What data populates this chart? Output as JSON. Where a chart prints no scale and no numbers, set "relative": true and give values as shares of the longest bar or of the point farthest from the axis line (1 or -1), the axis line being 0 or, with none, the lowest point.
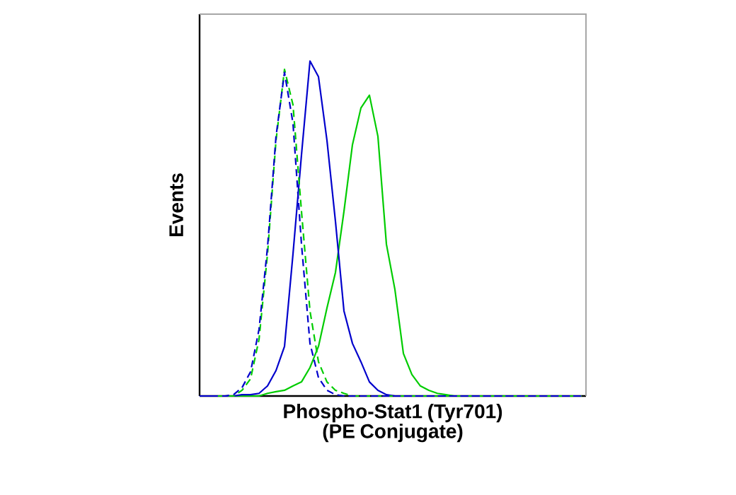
{
  "chart_data": {
    "type": "line",
    "relative": true,
    "xlabel": "Phospho-Stat1 (Tyr701) (PE Conjugate)",
    "ylabel": "Events",
    "marker": "none",
    "categories": [
      null,
      null,
      null,
      null,
      null,
      null,
      null,
      null,
      null,
      null,
      null,
      null,
      null,
      null,
      null,
      null,
      null,
      null,
      null,
      null,
      null,
      null,
      null,
      null,
      null,
      null,
      null,
      null,
      null,
      null,
      null,
      null,
      null,
      null,
      null,
      null,
      null,
      null,
      null,
      null,
      null,
      null,
      null,
      null,
      null,
      null
    ],
    "series": [
      {
        "color": "#00cc00",
        "line_style": "solid",
        "values": [
          null,
          null,
          null,
          0,
          0,
          0,
          0,
          0,
          0.008,
          0.013,
          0.017,
          0.03,
          0.042,
          0.085,
          0.148,
          0.263,
          0.369,
          0.551,
          0.75,
          0.86,
          0.898,
          0.775,
          0.453,
          0.318,
          0.127,
          0.064,
          0.03,
          0.017,
          0.008,
          0.004,
          0,
          0,
          0,
          0,
          0,
          0,
          0,
          0,
          0,
          0,
          0,
          0,
          0,
          0,
          0,
          0
        ]
      },
      {
        "color": "#0000cc",
        "line_style": "solid",
        "values": [
          0,
          0,
          0,
          0,
          0,
          0.004,
          0.004,
          0.008,
          0.03,
          0.076,
          0.148,
          0.424,
          0.72,
          1,
          0.953,
          0.763,
          0.521,
          0.254,
          0.157,
          0.102,
          0.042,
          0.017,
          0.004,
          0,
          0,
          0,
          0,
          0,
          0,
          0,
          0,
          0,
          0,
          0,
          0,
          0,
          0,
          0,
          0,
          0,
          0,
          0,
          0,
          0,
          0,
          0
        ]
      },
      {
        "color": "#00cc00",
        "line_style": "dashed",
        "values": [
          null,
          null,
          0,
          0,
          0,
          0.017,
          0.051,
          0.169,
          0.424,
          0.763,
          0.975,
          0.869,
          0.551,
          0.254,
          0.102,
          0.042,
          0.017,
          0.008,
          0,
          0,
          0,
          0,
          0,
          0,
          0,
          0,
          0,
          0,
          0,
          0,
          0,
          0,
          0,
          0,
          0,
          0,
          0,
          0,
          0,
          0,
          0,
          0,
          0,
          0,
          0,
          0
        ]
      },
      {
        "color": "#0000cc",
        "line_style": "dashed",
        "values": [
          0,
          0,
          0,
          0,
          0.004,
          0.025,
          0.072,
          0.199,
          0.444,
          0.775,
          0.966,
          0.814,
          0.453,
          0.157,
          0.055,
          0.017,
          0.004,
          0,
          0,
          0,
          0,
          0,
          0,
          0,
          0,
          0,
          0,
          0,
          0,
          0,
          0,
          0,
          0,
          0,
          0,
          0,
          0,
          0,
          0,
          0,
          0,
          0,
          0,
          0,
          0,
          0
        ]
      }
    ]
  }
}
